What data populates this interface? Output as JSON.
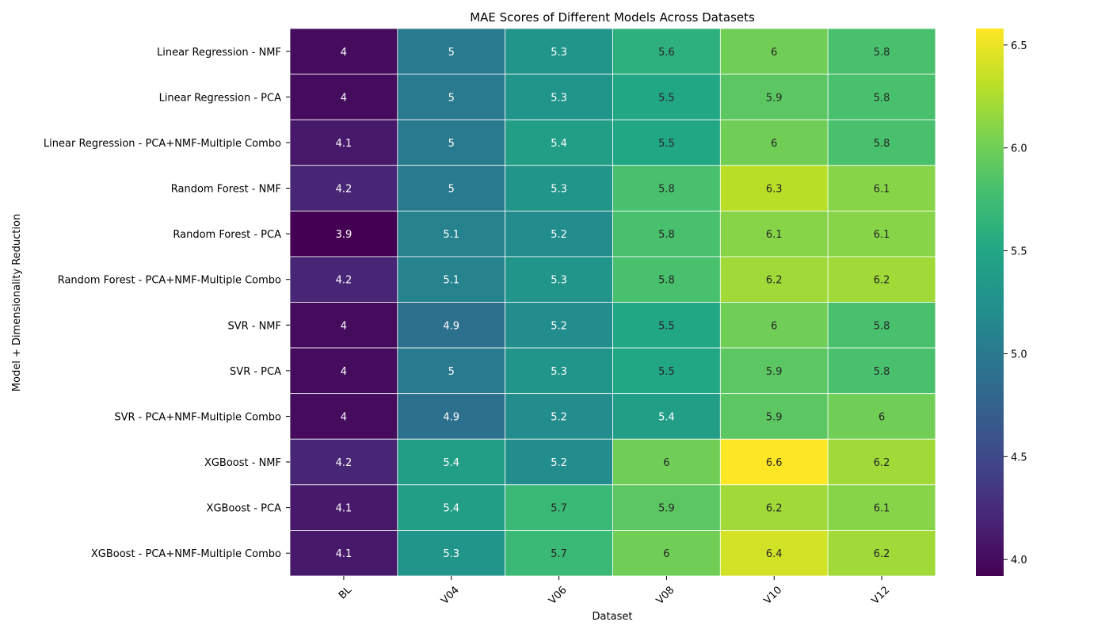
{
  "chart_data": {
    "type": "heatmap",
    "title": "MAE Scores of Different Models Across Datasets",
    "xlabel": "Dataset",
    "ylabel": "Model + Dimensionality Reduction",
    "x_categories": [
      "BL",
      "V04",
      "V06",
      "V08",
      "V10",
      "V12"
    ],
    "y_categories": [
      "Linear Regression - NMF",
      "Linear Regression - PCA",
      "Linear Regression - PCA+NMF-Multiple Combo",
      "Random Forest - NMF",
      "Random Forest - PCA",
      "Random Forest - PCA+NMF-Multiple Combo",
      "SVR - NMF",
      "SVR - PCA",
      "SVR - PCA+NMF-Multiple Combo",
      "XGBoost - NMF",
      "XGBoost - PCA",
      "XGBoost - PCA+NMF-Multiple Combo"
    ],
    "values": [
      [
        4.0,
        5.0,
        5.3,
        5.6,
        6.0,
        5.8
      ],
      [
        4.0,
        5.0,
        5.3,
        5.5,
        5.9,
        5.8
      ],
      [
        4.1,
        5.0,
        5.4,
        5.5,
        6.0,
        5.8
      ],
      [
        4.2,
        5.0,
        5.3,
        5.8,
        6.3,
        6.1
      ],
      [
        3.9,
        5.1,
        5.2,
        5.8,
        6.1,
        6.1
      ],
      [
        4.2,
        5.1,
        5.3,
        5.8,
        6.2,
        6.2
      ],
      [
        4.0,
        4.9,
        5.2,
        5.5,
        6.0,
        5.8
      ],
      [
        4.0,
        5.0,
        5.3,
        5.5,
        5.9,
        5.8
      ],
      [
        4.0,
        4.9,
        5.2,
        5.4,
        5.9,
        6.0
      ],
      [
        4.2,
        5.4,
        5.2,
        6.0,
        6.6,
        6.2
      ],
      [
        4.1,
        5.4,
        5.7,
        5.9,
        6.2,
        6.1
      ],
      [
        4.1,
        5.3,
        5.7,
        6.0,
        6.4,
        6.2
      ]
    ],
    "annotations": [
      [
        "4",
        "5",
        "5.3",
        "5.6",
        "6",
        "5.8"
      ],
      [
        "4",
        "5",
        "5.3",
        "5.5",
        "5.9",
        "5.8"
      ],
      [
        "4.1",
        "5",
        "5.4",
        "5.5",
        "6",
        "5.8"
      ],
      [
        "4.2",
        "5",
        "5.3",
        "5.8",
        "6.3",
        "6.1"
      ],
      [
        "3.9",
        "5.1",
        "5.2",
        "5.8",
        "6.1",
        "6.1"
      ],
      [
        "4.2",
        "5.1",
        "5.3",
        "5.8",
        "6.2",
        "6.2"
      ],
      [
        "4",
        "4.9",
        "5.2",
        "5.5",
        "6",
        "5.8"
      ],
      [
        "4",
        "5",
        "5.3",
        "5.5",
        "5.9",
        "5.8"
      ],
      [
        "4",
        "4.9",
        "5.2",
        "5.4",
        "5.9",
        "6"
      ],
      [
        "4.2",
        "5.4",
        "5.2",
        "6",
        "6.6",
        "6.2"
      ],
      [
        "4.1",
        "5.4",
        "5.7",
        "5.9",
        "6.2",
        "6.1"
      ],
      [
        "4.1",
        "5.3",
        "5.7",
        "6",
        "6.4",
        "6.2"
      ]
    ],
    "colormap": "viridis",
    "colorbar": {
      "vmin": 3.92,
      "vmax": 6.58,
      "ticks": [
        4.0,
        4.5,
        5.0,
        5.5,
        6.0,
        6.5
      ],
      "tick_labels": [
        "4.0",
        "4.5",
        "5.0",
        "5.5",
        "6.0",
        "6.5"
      ]
    },
    "cell_border_color": "#ffffff",
    "grid": false
  }
}
